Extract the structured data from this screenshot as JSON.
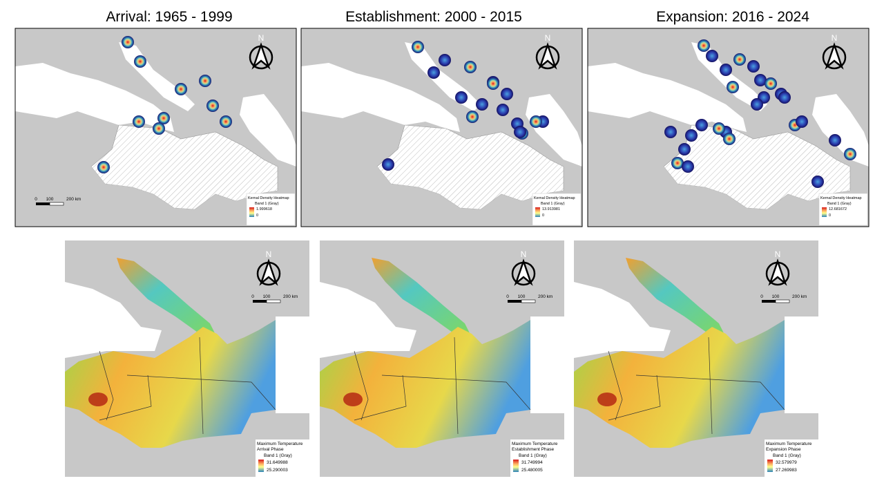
{
  "panels": [
    {
      "title": "Arrival: 1965 - 1999",
      "density_map": {
        "north": "N",
        "scale": [
          "0",
          "100",
          "200 km"
        ],
        "legend": {
          "title": "Kernal Density Heatmap",
          "band": "Band 1 (Gray)",
          "max": "1.999618",
          "min": "0"
        }
      },
      "temperature_map": {
        "north": "N",
        "scale": [
          "0",
          "100",
          "200 km"
        ],
        "legend": {
          "title": "Maximum Temperature",
          "phase": "Arrival Phase",
          "band": "Band 1 (Gray)",
          "max": "31.649988",
          "min": "25.290003"
        }
      }
    },
    {
      "title": "Establishment: 2000 - 2015",
      "density_map": {
        "north": "N",
        "legend": {
          "title": "Kernal Density Heatmap",
          "band": "Band 1 (Gray)",
          "max": "13.913981",
          "min": "0"
        }
      },
      "temperature_map": {
        "north": "N",
        "scale": [
          "0",
          "100",
          "200 km"
        ],
        "legend": {
          "title": "Maximum Temperature",
          "phase": "Establishment Phase",
          "band": "Band 1 (Gray)",
          "max": "31.749994",
          "min": "25.480005"
        }
      }
    },
    {
      "title": "Expansion: 2016 - 2024",
      "density_map": {
        "north": "N",
        "legend": {
          "title": "Kernal Density Heatmap",
          "band": "Band 1 (Gray)",
          "max": "12.681672",
          "min": "0"
        }
      },
      "temperature_map": {
        "north": "N",
        "scale": [
          "0",
          "100",
          "200 km"
        ],
        "legend": {
          "title": "Maximum Temperature",
          "phase": "Expansion Phase",
          "band": "Band 1 (Gray)",
          "max": "32.579979",
          "min": "27.269983"
        }
      }
    }
  ]
}
